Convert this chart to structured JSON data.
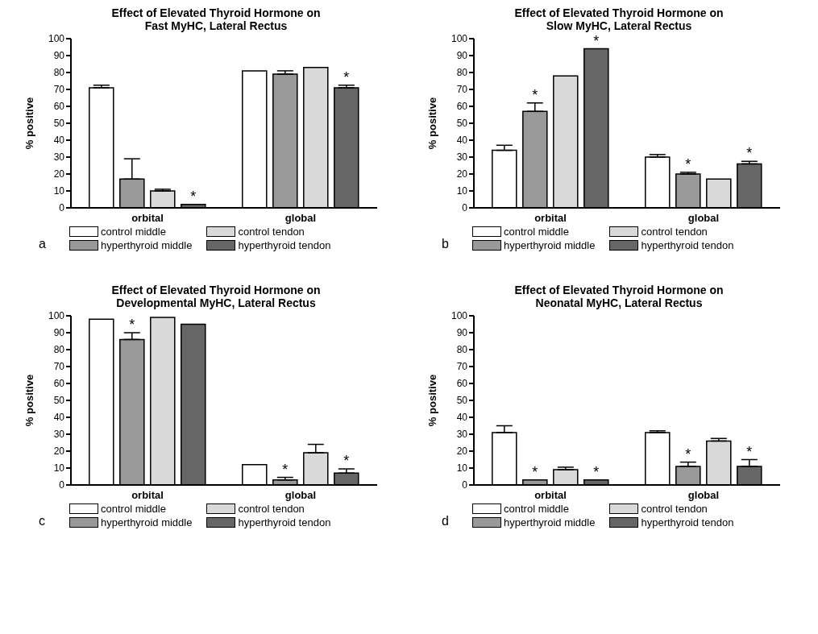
{
  "chart_data": [
    {
      "type": "bar",
      "title": "Effect of Elevated Thyroid Hormone on\nFast MyHC, Lateral Rectus",
      "ylabel": "% positive",
      "categories": [
        "orbital",
        "global"
      ],
      "ylim": [
        0,
        100
      ],
      "yticks": [
        0,
        10,
        20,
        30,
        40,
        50,
        60,
        70,
        80,
        90,
        100
      ],
      "grid": false,
      "legend": "bottom",
      "annotations": [
        "a"
      ],
      "series": [
        {
          "name": "control middle",
          "color": "#ffffff",
          "values": [
            71,
            81
          ],
          "errors": [
            1.5,
            null
          ]
        },
        {
          "name": "hyperthyroid middle",
          "color": "#999999",
          "values": [
            17,
            79
          ],
          "errors": [
            12,
            2
          ]
        },
        {
          "name": "control tendon",
          "color": "#d9d9d9",
          "values": [
            10,
            83
          ],
          "errors": [
            1,
            null
          ]
        },
        {
          "name": "hyperthyroid tendon",
          "color": "#666666",
          "values": [
            2,
            71
          ],
          "errors": [
            null,
            1.5
          ],
          "value_labels": [
            "*",
            "*"
          ]
        }
      ]
    },
    {
      "type": "bar",
      "title": "Effect of Elevated Thyroid Hormone on\nSlow MyHC, Lateral Rectus",
      "ylabel": "% positive",
      "categories": [
        "orbital",
        "global"
      ],
      "ylim": [
        0,
        100
      ],
      "yticks": [
        0,
        10,
        20,
        30,
        40,
        50,
        60,
        70,
        80,
        90,
        100
      ],
      "grid": false,
      "legend": "bottom",
      "annotations": [
        "b"
      ],
      "series": [
        {
          "name": "control middle",
          "color": "#ffffff",
          "values": [
            34,
            30
          ],
          "errors": [
            3,
            1.5
          ]
        },
        {
          "name": "hyperthyroid middle",
          "color": "#999999",
          "values": [
            57,
            20
          ],
          "errors": [
            5,
            1
          ],
          "value_labels": [
            "*",
            "*"
          ]
        },
        {
          "name": "control tendon",
          "color": "#d9d9d9",
          "values": [
            78,
            17
          ]
        },
        {
          "name": "hyperthyroid tendon",
          "color": "#666666",
          "values": [
            94,
            26
          ],
          "errors": [
            null,
            1.5
          ],
          "value_labels": [
            "*",
            "*"
          ]
        }
      ]
    },
    {
      "type": "bar",
      "title": "Effect of Elevated Thyroid Hormone on\nDevelopmental MyHC, Lateral Rectus",
      "ylabel": "% positive",
      "categories": [
        "orbital",
        "global"
      ],
      "ylim": [
        0,
        100
      ],
      "yticks": [
        0,
        10,
        20,
        30,
        40,
        50,
        60,
        70,
        80,
        90,
        100
      ],
      "grid": false,
      "legend": "bottom",
      "annotations": [
        "c"
      ],
      "series": [
        {
          "name": "control middle",
          "color": "#ffffff",
          "values": [
            98,
            12
          ]
        },
        {
          "name": "hyperthyroid middle",
          "color": "#999999",
          "values": [
            86,
            3
          ],
          "errors": [
            4,
            1.5
          ],
          "value_labels": [
            "*",
            "*"
          ]
        },
        {
          "name": "control tendon",
          "color": "#d9d9d9",
          "values": [
            99,
            19
          ],
          "errors": [
            null,
            5
          ]
        },
        {
          "name": "hyperthyroid tendon",
          "color": "#666666",
          "values": [
            95,
            7
          ],
          "errors": [
            null,
            2.5
          ],
          "value_labels": [
            null,
            "*"
          ]
        }
      ]
    },
    {
      "type": "bar",
      "title": "Effect of Elevated Thyroid Hormone on\nNeonatal MyHC, Lateral Rectus",
      "ylabel": "% positive",
      "categories": [
        "orbital",
        "global"
      ],
      "ylim": [
        0,
        100
      ],
      "yticks": [
        0,
        10,
        20,
        30,
        40,
        50,
        60,
        70,
        80,
        90,
        100
      ],
      "grid": false,
      "legend": "bottom",
      "annotations": [
        "d"
      ],
      "series": [
        {
          "name": "control middle",
          "color": "#ffffff",
          "values": [
            31,
            31
          ],
          "errors": [
            4,
            1
          ]
        },
        {
          "name": "hyperthyroid middle",
          "color": "#999999",
          "values": [
            3,
            11
          ],
          "errors": [
            null,
            2.5
          ],
          "value_labels": [
            "*",
            "*"
          ]
        },
        {
          "name": "control tendon",
          "color": "#d9d9d9",
          "values": [
            9,
            26
          ],
          "errors": [
            1.5,
            1.5
          ]
        },
        {
          "name": "hyperthyroid tendon",
          "color": "#666666",
          "values": [
            3,
            11
          ],
          "errors": [
            null,
            4
          ],
          "value_labels": [
            "*",
            "*"
          ]
        }
      ]
    }
  ]
}
